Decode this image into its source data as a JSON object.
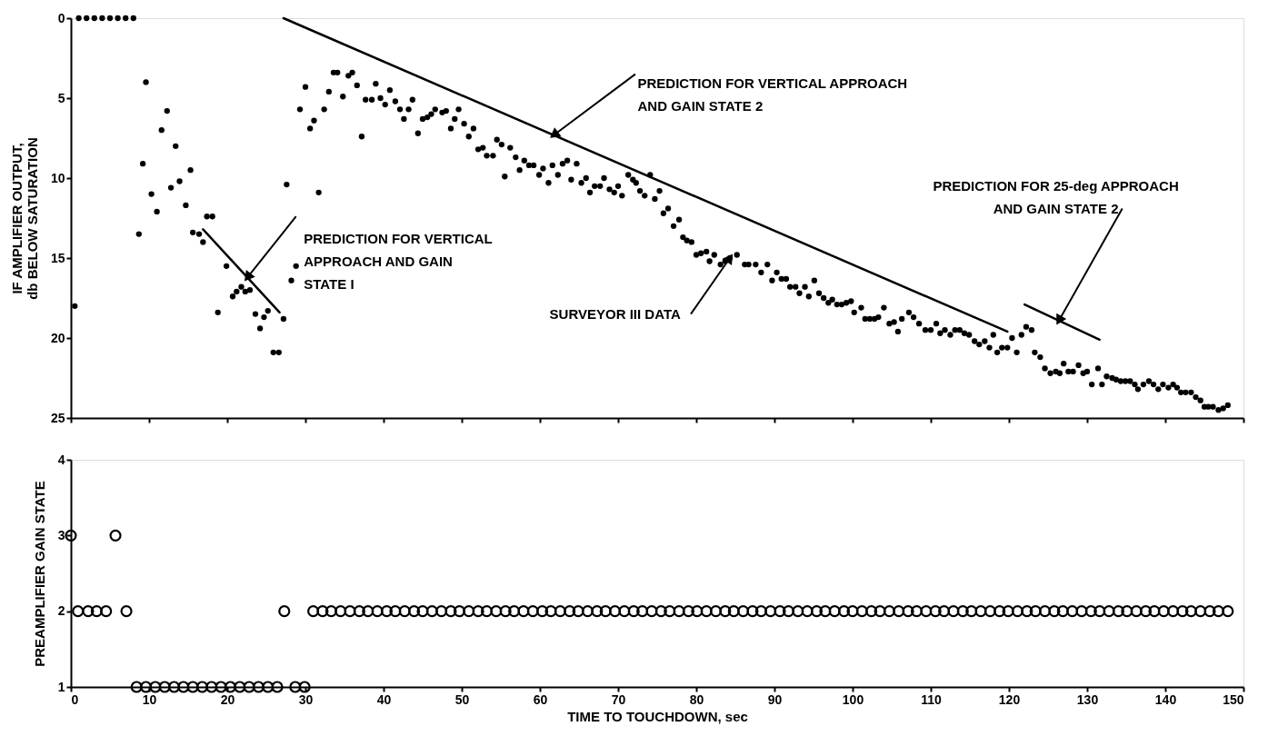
{
  "chart_data": [
    {
      "type": "scatter",
      "ylabel": "IF AMPLIFIER OUTPUT,\ndb BELOW SATURATION",
      "xlim": [
        0,
        150
      ],
      "ylim": [
        25,
        0
      ],
      "xticks": [
        0,
        10,
        20,
        30,
        40,
        50,
        60,
        70,
        80,
        90,
        100,
        110,
        120,
        130,
        140,
        150
      ],
      "yticks": [
        0,
        5,
        10,
        15,
        20,
        25
      ],
      "tick_labels": "y",
      "marker": "circle",
      "grid": false,
      "series": [
        {
          "type": "scatter",
          "color": "#000000",
          "x": [
            1,
            2,
            3,
            4,
            5,
            6,
            7,
            8,
            0.5,
            8.7,
            9.2,
            9.6,
            10.3,
            11.0,
            11.6,
            12.3,
            12.8,
            13.4,
            13.9,
            14.7,
            15.3,
            15.6,
            16.4,
            16.9,
            17.4,
            18.1,
            18.8,
            19.9,
            20.7,
            21.2,
            21.8,
            22.3,
            22.9,
            23.6,
            24.2,
            24.7,
            25.2,
            25.9,
            26.6,
            27.2,
            27.6,
            28.2,
            28.8,
            29.3,
            30.0,
            30.6,
            31.1,
            31.7,
            32.4,
            33.0,
            33.6,
            34.1,
            34.8,
            35.5,
            36.0,
            36.6,
            37.2,
            37.7,
            38.5,
            39.0,
            39.6,
            40.2,
            40.8,
            41.5,
            42.1,
            42.6,
            43.2,
            43.7,
            44.4,
            45.0,
            45.6,
            46.1,
            46.6,
            47.5,
            48.0,
            48.6,
            49.1,
            49.6,
            50.3,
            50.9,
            51.5,
            52.1,
            52.7,
            53.2,
            54.0,
            54.5,
            55.1,
            55.5,
            56.2,
            56.9,
            57.4,
            58.0,
            58.6,
            59.2,
            59.9,
            60.4,
            61.1,
            61.6,
            62.3,
            62.9,
            63.5,
            64.0,
            64.7,
            65.3,
            65.9,
            66.4,
            67.0,
            67.7,
            68.2,
            68.9,
            69.5,
            70.0,
            70.5,
            71.3,
            71.9,
            72.3,
            72.8,
            73.4,
            74.1,
            74.7,
            75.3,
            75.8,
            76.4,
            77.1,
            77.8,
            78.3,
            78.8,
            79.4,
            80.0,
            80.6,
            81.3,
            81.7,
            82.3,
            83.1,
            83.7,
            84.3,
            85.2,
            86.2,
            86.7,
            87.6,
            88.3,
            89.1,
            89.7,
            90.3,
            90.9,
            91.5,
            92.0,
            92.7,
            93.2,
            93.9,
            94.4,
            95.1,
            95.7,
            96.3,
            96.9,
            97.4,
            98.0,
            98.6,
            99.2,
            99.8,
            100.2,
            101.1,
            101.6,
            102.2,
            102.8,
            103.3,
            104.0,
            104.7,
            105.3,
            105.8,
            106.3,
            107.2,
            107.8,
            108.5,
            109.3,
            110.0,
            110.7,
            111.2,
            111.8,
            112.5,
            113.1,
            113.7,
            114.3,
            114.9,
            115.6,
            116.2,
            116.9,
            117.5,
            118.0,
            118.5,
            119.1,
            119.8,
            120.4,
            121.0,
            121.6,
            122.2,
            122.9,
            123.3,
            124.0,
            124.6,
            125.3,
            126.0,
            126.5,
            127.0,
            127.6,
            128.2,
            128.9,
            129.5,
            130.0,
            130.6,
            131.4,
            131.9,
            132.5,
            133.2,
            133.7,
            134.3,
            134.9,
            135.5,
            136.1,
            136.5,
            137.2,
            137.9,
            138.5,
            139.1,
            139.7,
            140.4,
            141.0,
            141.5,
            142.0,
            142.6,
            143.3,
            143.9,
            144.5,
            145.0,
            145.5,
            146.1,
            146.8,
            147.4,
            148.0
          ],
          "values": [
            0,
            0,
            0,
            0,
            0,
            0,
            0,
            0,
            18.0,
            13.5,
            9.1,
            4.0,
            11.0,
            12.1,
            7.0,
            5.8,
            10.6,
            8.0,
            10.2,
            11.7,
            9.5,
            13.4,
            13.5,
            14.0,
            12.4,
            12.4,
            18.4,
            15.5,
            17.4,
            17.1,
            16.8,
            17.1,
            17.0,
            18.5,
            19.4,
            18.7,
            18.3,
            20.9,
            20.9,
            18.8,
            10.4,
            16.4,
            15.5,
            5.7,
            4.3,
            6.9,
            6.4,
            10.9,
            5.7,
            4.6,
            3.4,
            3.4,
            4.9,
            3.6,
            3.4,
            4.2,
            7.4,
            5.1,
            5.1,
            4.1,
            5.0,
            5.4,
            4.5,
            5.2,
            5.7,
            6.3,
            5.7,
            5.1,
            7.2,
            6.3,
            6.2,
            6.0,
            5.7,
            5.9,
            5.8,
            6.9,
            6.3,
            5.7,
            6.6,
            7.4,
            6.9,
            8.2,
            8.1,
            8.6,
            8.6,
            7.6,
            7.9,
            9.9,
            8.1,
            8.7,
            9.5,
            8.9,
            9.2,
            9.2,
            9.8,
            9.4,
            10.3,
            9.2,
            9.8,
            9.1,
            8.9,
            10.1,
            9.1,
            10.3,
            10.0,
            10.9,
            10.5,
            10.5,
            10.0,
            10.7,
            10.9,
            10.5,
            11.1,
            9.8,
            10.1,
            10.3,
            10.8,
            11.1,
            9.8,
            11.3,
            10.8,
            12.2,
            11.9,
            13.0,
            12.6,
            13.7,
            13.9,
            14.0,
            14.8,
            14.7,
            14.6,
            15.2,
            14.8,
            15.4,
            15.2,
            15.0,
            14.8,
            15.4,
            15.4,
            15.4,
            15.9,
            15.4,
            16.4,
            15.9,
            16.3,
            16.3,
            16.8,
            16.8,
            17.2,
            16.8,
            17.4,
            16.4,
            17.2,
            17.5,
            17.8,
            17.6,
            17.9,
            17.9,
            17.8,
            17.7,
            18.4,
            18.1,
            18.8,
            18.8,
            18.8,
            18.7,
            18.1,
            19.1,
            19.0,
            19.6,
            18.8,
            18.4,
            18.7,
            19.1,
            19.5,
            19.5,
            19.1,
            19.7,
            19.5,
            19.8,
            19.5,
            19.5,
            19.7,
            19.8,
            20.2,
            20.4,
            20.2,
            20.6,
            19.8,
            20.9,
            20.6,
            20.6,
            20.0,
            20.9,
            19.8,
            19.3,
            19.5,
            20.9,
            21.2,
            21.9,
            22.2,
            22.1,
            22.2,
            21.6,
            22.1,
            22.1,
            21.7,
            22.2,
            22.1,
            22.9,
            21.9,
            22.9,
            22.4,
            22.5,
            22.6,
            22.7,
            22.7,
            22.7,
            22.9,
            23.2,
            22.9,
            22.7,
            22.9,
            23.2,
            22.9,
            23.1,
            22.9,
            23.1,
            23.4,
            23.4,
            23.4,
            23.7,
            23.9,
            24.3,
            24.3,
            24.3,
            24.5,
            24.4,
            24.2
          ]
        },
        {
          "type": "line",
          "marker": "none",
          "color": "#000000",
          "x": [
            27.2,
            119.8
          ],
          "values": [
            0,
            19.6
          ]
        },
        {
          "type": "line",
          "marker": "none",
          "color": "#000000",
          "x": [
            16.9,
            26.7
          ],
          "values": [
            13.2,
            18.4
          ]
        },
        {
          "type": "line",
          "marker": "none",
          "color": "#000000",
          "x": [
            122.0,
            131.6
          ],
          "values": [
            17.9,
            20.1
          ]
        }
      ],
      "annotations": [
        {
          "text": "PREDICTION FOR VERTICAL APPROACH\nAND GAIN STATE 2",
          "x": 61.8,
          "y": 7.3
        },
        {
          "text": "PREDICTION FOR VERTICAL\nAPPROACH AND GAIN\nSTATE I",
          "x": 22.6,
          "y": 16.2
        },
        {
          "text": "SURVEYOR III DATA",
          "x": 84.3,
          "y": 15.0
        },
        {
          "text": "PREDICTION FOR 25-deg APPROACH\nAND GAIN STATE 2",
          "x": 126.4,
          "y": 18.9
        }
      ]
    },
    {
      "type": "scatter",
      "xlabel": "TIME TO TOUCHDOWN, sec",
      "ylabel": "PREAMPLIFIER GAIN STATE",
      "xlim": [
        0,
        150
      ],
      "ylim": [
        1,
        4
      ],
      "xticks": [
        0,
        10,
        20,
        30,
        40,
        50,
        60,
        70,
        80,
        90,
        100,
        110,
        120,
        130,
        140,
        150
      ],
      "yticks": [
        1,
        2,
        3,
        4
      ],
      "marker": "circle",
      "grid": false,
      "series": [
        {
          "type": "scatter",
          "color": "#000000",
          "x": [
            0,
            5.7,
            0.9,
            2.2,
            3.3,
            4.5,
            7.1,
            8.4,
            9.6,
            10.8,
            12.0,
            13.2,
            14.4,
            15.6,
            16.8,
            18.0,
            19.2,
            20.4,
            21.6,
            22.8,
            24.0,
            25.2,
            26.4,
            27.3,
            28.7,
            29.9,
            31.0,
            32.2,
            33.3,
            34.5,
            35.7,
            36.9,
            38.0,
            39.2,
            40.4,
            41.5,
            42.7,
            43.9,
            45.0,
            46.2,
            47.4,
            48.6,
            49.7,
            50.9,
            52.1,
            53.2,
            54.4,
            55.6,
            56.7,
            57.9,
            59.1,
            60.3,
            61.4,
            62.6,
            63.8,
            64.9,
            66.1,
            67.3,
            68.4,
            69.6,
            70.8,
            72.0,
            73.1,
            74.3,
            75.5,
            76.6,
            77.8,
            79.0,
            80.1,
            81.3,
            82.5,
            83.7,
            84.8,
            86.0,
            87.2,
            88.3,
            89.5,
            90.7,
            91.8,
            93.0,
            94.2,
            95.4,
            96.5,
            97.7,
            98.9,
            100.0,
            101.2,
            102.4,
            103.5,
            104.7,
            105.9,
            107.1,
            108.2,
            109.4,
            110.6,
            111.7,
            112.9,
            114.1,
            115.2,
            116.4,
            117.6,
            118.8,
            119.9,
            121.1,
            122.3,
            123.4,
            124.6,
            125.8,
            126.9,
            128.1,
            129.3,
            130.5,
            131.6,
            132.8,
            134.0,
            135.1,
            136.3,
            137.5,
            138.6,
            139.8,
            141.0,
            142.2,
            143.3,
            144.5,
            145.7,
            146.8,
            148.0
          ],
          "values": [
            3,
            3,
            2,
            2,
            2,
            2,
            2,
            1,
            1,
            1,
            1,
            1,
            1,
            1,
            1,
            1,
            1,
            1,
            1,
            1,
            1,
            1,
            1,
            2,
            1,
            1,
            2,
            2,
            2,
            2,
            2,
            2,
            2,
            2,
            2,
            2,
            2,
            2,
            2,
            2,
            2,
            2,
            2,
            2,
            2,
            2,
            2,
            2,
            2,
            2,
            2,
            2,
            2,
            2,
            2,
            2,
            2,
            2,
            2,
            2,
            2,
            2,
            2,
            2,
            2,
            2,
            2,
            2,
            2,
            2,
            2,
            2,
            2,
            2,
            2,
            2,
            2,
            2,
            2,
            2,
            2,
            2,
            2,
            2,
            2,
            2,
            2,
            2,
            2,
            2,
            2,
            2,
            2,
            2,
            2,
            2,
            2,
            2,
            2,
            2,
            2,
            2,
            2,
            2,
            2,
            2,
            2,
            2,
            2,
            2,
            2,
            2,
            2,
            2,
            2,
            2,
            2,
            2,
            2,
            2,
            2,
            2,
            2,
            2,
            2,
            2,
            2
          ]
        }
      ]
    }
  ]
}
